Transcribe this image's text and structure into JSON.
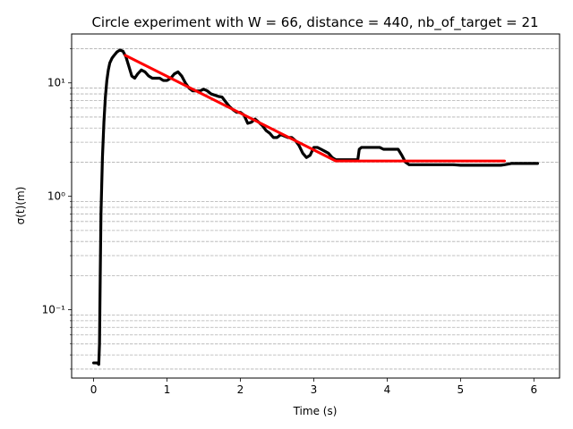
{
  "chart_data": {
    "type": "line",
    "title": "Circle experiment with W = 66, distance = 440, nb_of_target = 21",
    "xlabel": "Time (s)",
    "ylabel": "σ(t)(m)",
    "xlim": [
      -0.3,
      6.35
    ],
    "ylim": [
      0.025,
      27
    ],
    "yscale": "log",
    "grid": "y-minor dashed",
    "x_ticks": [
      0,
      1,
      2,
      3,
      4,
      5,
      6
    ],
    "x_tick_labels": [
      "0",
      "1",
      "2",
      "3",
      "4",
      "5",
      "6"
    ],
    "y_ticks": [
      0.1,
      1,
      10
    ],
    "y_tick_labels": [
      "10⁻¹",
      "10⁰",
      "10¹"
    ],
    "series": [
      {
        "color": "#000000",
        "x": [
          0.0,
          0.05,
          0.07,
          0.08,
          0.09,
          0.1,
          0.12,
          0.14,
          0.16,
          0.18,
          0.2,
          0.22,
          0.25,
          0.28,
          0.32,
          0.36,
          0.4,
          0.44,
          0.48,
          0.52,
          0.56,
          0.6,
          0.65,
          0.7,
          0.75,
          0.8,
          0.85,
          0.9,
          0.95,
          1.0,
          1.05,
          1.1,
          1.15,
          1.2,
          1.25,
          1.3,
          1.35,
          1.4,
          1.45,
          1.5,
          1.55,
          1.6,
          1.65,
          1.7,
          1.75,
          1.8,
          1.85,
          1.9,
          1.95,
          2.0,
          2.05,
          2.1,
          2.15,
          2.2,
          2.25,
          2.3,
          2.35,
          2.4,
          2.45,
          2.5,
          2.55,
          2.6,
          2.65,
          2.7,
          2.75,
          2.8,
          2.85,
          2.9,
          2.95,
          3.0,
          3.05,
          3.1,
          3.15,
          3.2,
          3.25,
          3.3,
          3.35,
          3.4,
          3.45,
          3.5,
          3.55,
          3.6,
          3.62,
          3.65,
          3.7,
          3.75,
          3.8,
          3.85,
          3.9,
          3.95,
          4.0,
          4.05,
          4.1,
          4.15,
          4.2,
          4.25,
          4.3,
          4.4,
          4.5,
          4.6,
          4.7,
          4.8,
          4.9,
          5.0,
          5.1,
          5.2,
          5.3,
          5.4,
          5.5,
          5.55,
          5.6,
          5.7,
          5.8,
          5.9,
          6.0,
          6.05
        ],
        "y": [
          0.034,
          0.034,
          0.033,
          0.05,
          0.2,
          0.7,
          2.2,
          4.5,
          7.5,
          10.5,
          13.0,
          15.0,
          16.5,
          17.5,
          18.8,
          19.5,
          19.0,
          17.0,
          14.0,
          11.5,
          11.0,
          12.0,
          13.0,
          12.5,
          11.5,
          11.0,
          11.0,
          11.0,
          10.5,
          10.5,
          11.0,
          12.0,
          12.5,
          11.5,
          10.0,
          9.0,
          8.5,
          8.5,
          8.5,
          8.8,
          8.5,
          8.0,
          7.8,
          7.6,
          7.5,
          6.8,
          6.2,
          5.8,
          5.5,
          5.5,
          5.2,
          4.4,
          4.5,
          4.8,
          4.5,
          4.2,
          3.8,
          3.6,
          3.3,
          3.3,
          3.5,
          3.4,
          3.3,
          3.3,
          3.1,
          2.8,
          2.4,
          2.2,
          2.3,
          2.7,
          2.7,
          2.6,
          2.5,
          2.4,
          2.2,
          2.1,
          2.1,
          2.1,
          2.1,
          2.1,
          2.1,
          2.1,
          2.6,
          2.7,
          2.7,
          2.7,
          2.7,
          2.7,
          2.7,
          2.6,
          2.6,
          2.6,
          2.6,
          2.6,
          2.3,
          2.0,
          1.9,
          1.9,
          1.9,
          1.9,
          1.9,
          1.9,
          1.9,
          1.88,
          1.88,
          1.88,
          1.88,
          1.88,
          1.88,
          1.88,
          1.9,
          1.95,
          1.95,
          1.95,
          1.95,
          1.95
        ]
      },
      {
        "color": "#ff0000",
        "x": [
          0.43,
          3.3,
          5.6
        ],
        "y": [
          17.5,
          2.05,
          2.05
        ]
      }
    ]
  }
}
